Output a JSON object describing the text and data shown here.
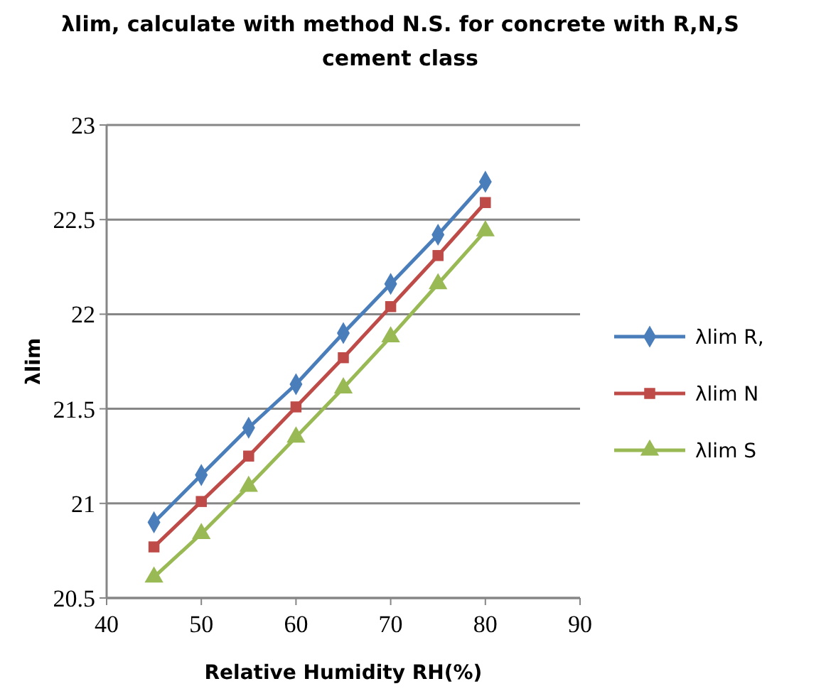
{
  "chart_data": {
    "type": "line",
    "title": "λlim, calculate with method N.S. for concrete with R,N,S cement class",
    "xlabel": "Relative Humidity  RH(%)",
    "ylabel": "λlim",
    "x": [
      45,
      50,
      55,
      60,
      65,
      70,
      75,
      80
    ],
    "series": [
      {
        "name": "λlim R,",
        "color": "#4a7ebb",
        "marker": "diamond",
        "values": [
          20.9,
          21.15,
          21.4,
          21.63,
          21.9,
          22.16,
          22.42,
          22.7
        ]
      },
      {
        "name": "λlim N",
        "color": "#be4b48",
        "marker": "square",
        "values": [
          20.77,
          21.01,
          21.25,
          21.51,
          21.77,
          22.04,
          22.31,
          22.59
        ]
      },
      {
        "name": "λlim S",
        "color": "#98b954",
        "marker": "triangle",
        "values": [
          20.61,
          20.84,
          21.09,
          21.35,
          21.61,
          21.88,
          22.16,
          22.44
        ]
      }
    ],
    "xlim": [
      40,
      90
    ],
    "xticks": [
      40,
      50,
      60,
      70,
      80,
      90
    ],
    "ylim": [
      20.5,
      23
    ],
    "yticks": [
      20.5,
      21,
      21.5,
      22,
      22.5,
      23
    ],
    "grid": "y",
    "legend": "right"
  }
}
